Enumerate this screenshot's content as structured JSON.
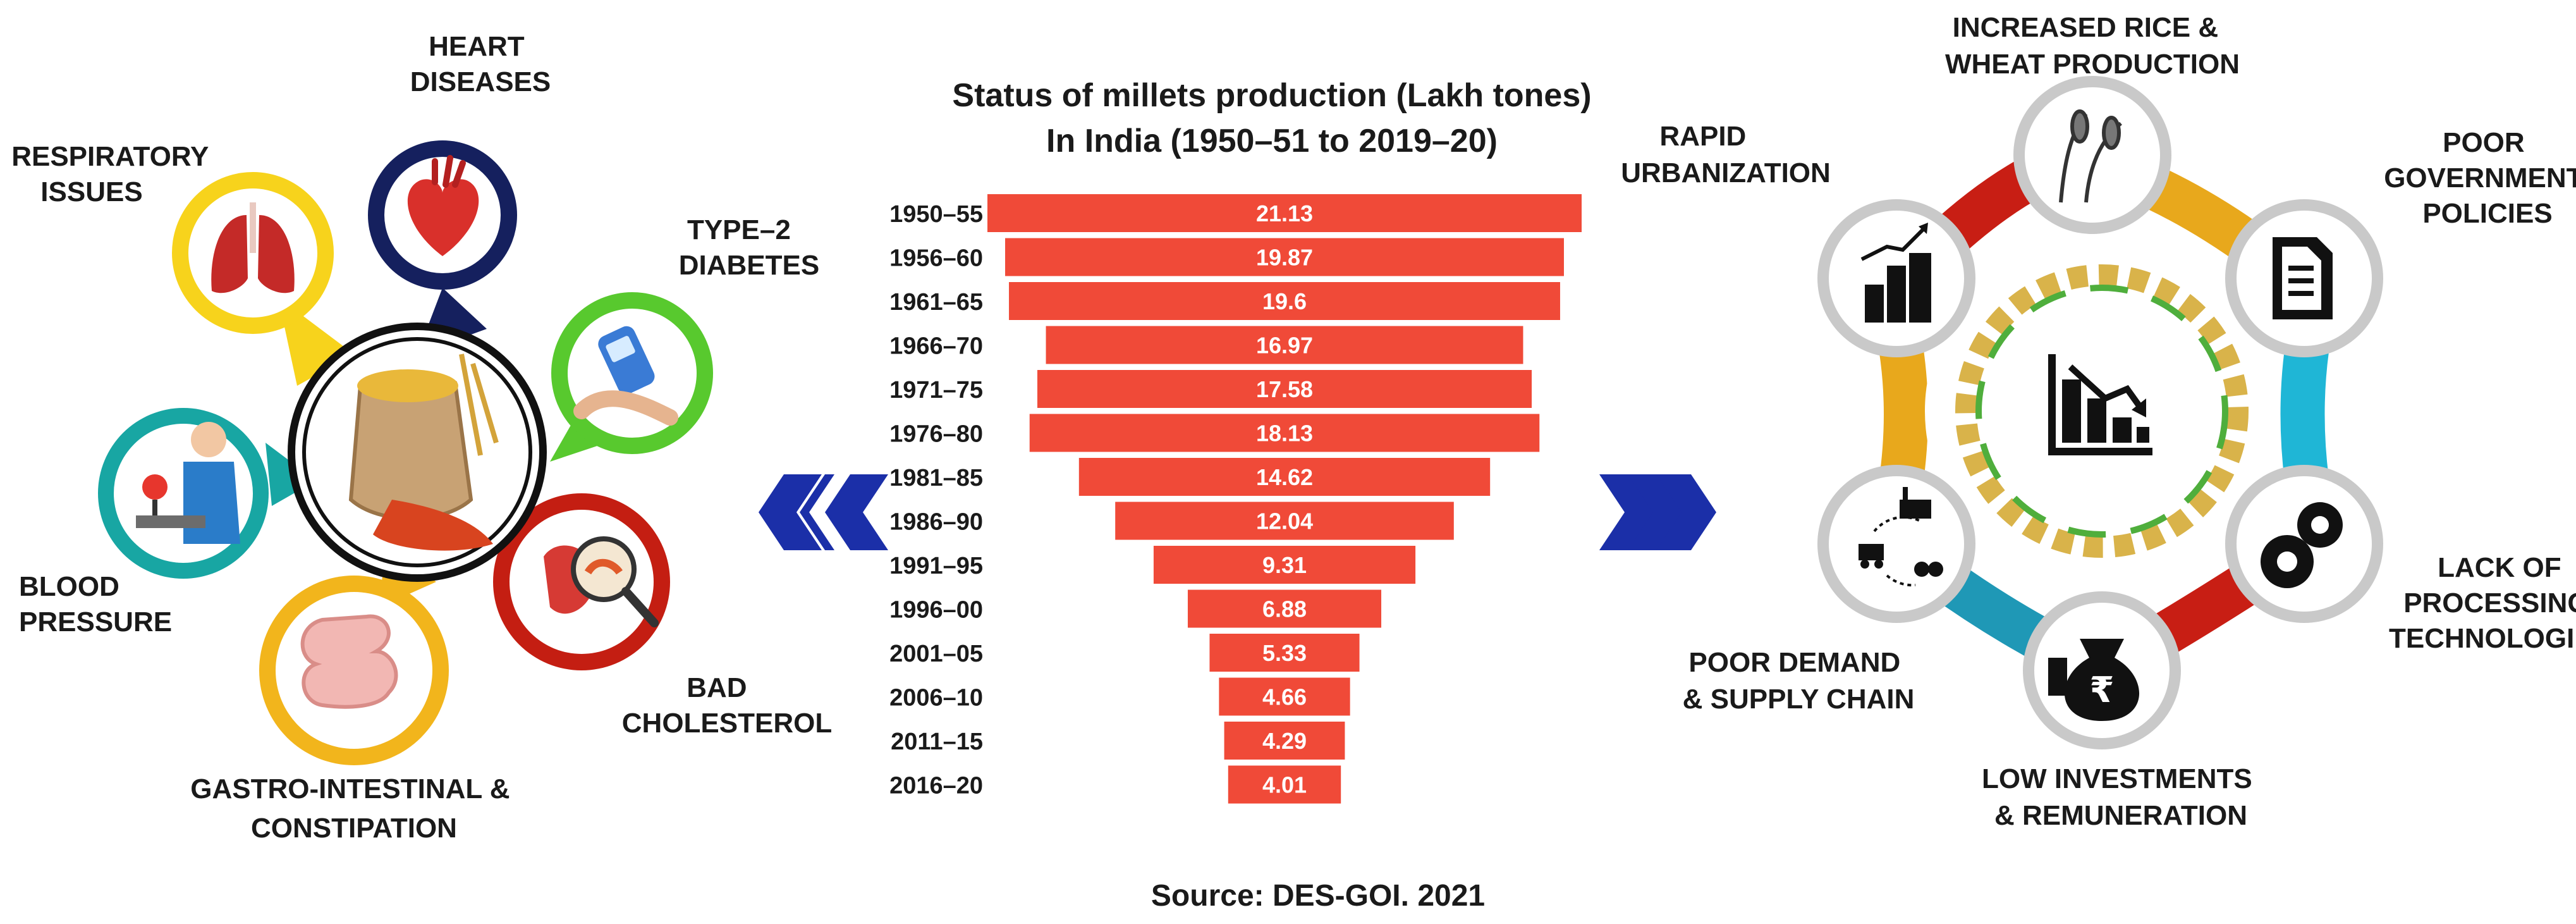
{
  "left_panel": {
    "center_label": "Millets",
    "benefits": [
      {
        "id": "heart",
        "label_lines": [
          "HEART",
          "DISEASES"
        ],
        "color": "#15205e"
      },
      {
        "id": "respiratory",
        "label_lines": [
          "RESPIRATORY",
          "ISSUES"
        ],
        "color": "#f7d31c"
      },
      {
        "id": "diabetes",
        "label_lines": [
          "TYPE–2",
          "DIABETES"
        ],
        "color": "#58c92e"
      },
      {
        "id": "cholesterol",
        "label_lines": [
          "BAD",
          "CHOLESTEROL"
        ],
        "color": "#c41e12"
      },
      {
        "id": "gastro",
        "label_lines": [
          "GASTRO-INTESTINAL &",
          "CONSTIPATION"
        ],
        "color": "#f2b51c"
      },
      {
        "id": "bp",
        "label_lines": [
          "BLOOD",
          "PRESSURE"
        ],
        "color": "#18a6a3"
      }
    ]
  },
  "chart_data": {
    "type": "bar",
    "orientation": "horizontal-centered",
    "title": "Status of millets production (Lakh tones) In India (1950–51 to 2019–20)",
    "title_lines": [
      "Status of millets production (Lakh tones)",
      "In India (1950–51 to 2019–20)"
    ],
    "categories": [
      "1950–55",
      "1956–60",
      "1961–65",
      "1966–70",
      "1971–75",
      "1976–80",
      "1981–85",
      "1986–90",
      "1991–95",
      "1996–00",
      "2001–05",
      "2006–10",
      "2011–15",
      "2016–20"
    ],
    "values": [
      21.13,
      19.87,
      19.6,
      16.97,
      17.58,
      18.13,
      14.62,
      12.04,
      9.31,
      6.88,
      5.33,
      4.66,
      4.29,
      4.01
    ],
    "value_labels": [
      "21.13",
      "19.87",
      "19.6",
      "16.97",
      "17.58",
      "18.13",
      "14.62",
      "12.04",
      "9.31",
      "6.88",
      "5.33",
      "4.66",
      "4.29",
      "4.01"
    ],
    "xlim": [
      0,
      21.13
    ],
    "bar_color": "#f04a38",
    "source": "Source: DES-GOI. 2021"
  },
  "right_panel": {
    "center_label": "Decline",
    "factors": [
      {
        "id": "rice_wheat",
        "label_lines": [
          "INCREASED RICE &",
          "WHEAT PRODUCTION"
        ],
        "icon": "wheat-icon"
      },
      {
        "id": "policies",
        "label_lines": [
          "POOR",
          "GOVERNMENT",
          "POLICIES"
        ],
        "icon": "document-icon"
      },
      {
        "id": "processing",
        "label_lines": [
          "LACK OF",
          "PROCESSING",
          "TECHNOLOGIES"
        ],
        "icon": "gears-icon"
      },
      {
        "id": "investment",
        "label_lines": [
          "LOW INVESTMENTS",
          "& REMUNERATION"
        ],
        "icon": "money-bag-icon"
      },
      {
        "id": "supply",
        "label_lines": [
          "POOR DEMAND",
          "& SUPPLY CHAIN"
        ],
        "icon": "supply-chain-icon"
      },
      {
        "id": "urban",
        "label_lines": [
          "RAPID",
          "URBANIZATION"
        ],
        "icon": "city-icon"
      }
    ],
    "ribbon_colors": [
      "#e8a81c",
      "#1fb6d6",
      "#c81e14",
      "#1f98b6",
      "#e8a81c",
      "#c81e14"
    ]
  },
  "colors": {
    "arrow": "#1b2fa8",
    "bar": "#f04a38",
    "text": "#1a1a1a"
  }
}
